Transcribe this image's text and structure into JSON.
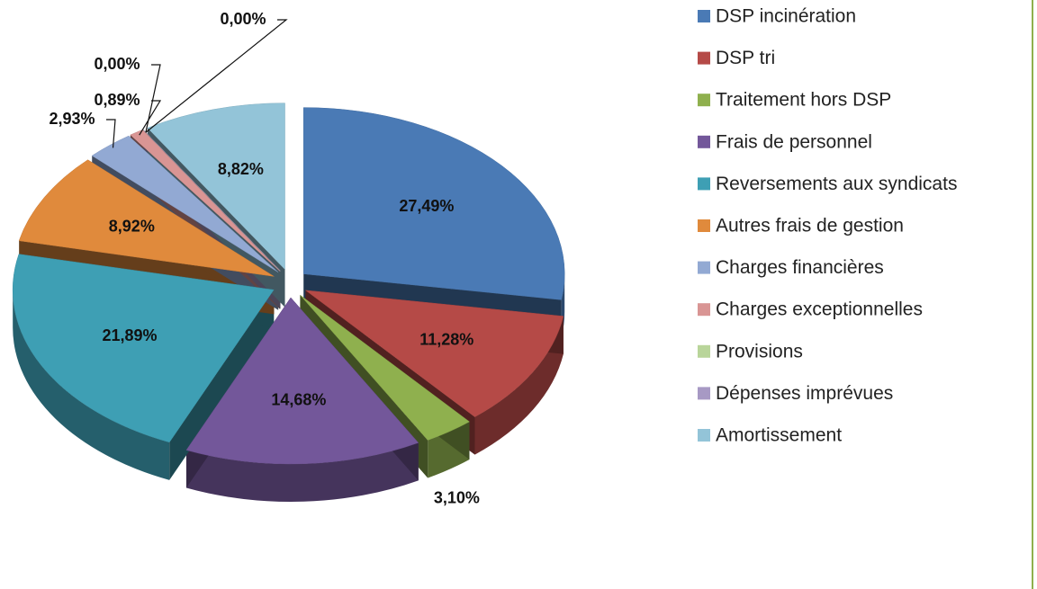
{
  "chart_data": {
    "type": "pie",
    "categories": [
      "DSP incinération",
      "DSP tri",
      "Traitement hors DSP",
      "Frais de personnel",
      "Reversements aux syndicats",
      "Autres frais de gestion",
      "Charges financières",
      "Charges exceptionnelles",
      "Provisions",
      "Dépenses imprévues",
      "Amortissement"
    ],
    "values": [
      27.49,
      11.28,
      3.1,
      14.68,
      21.89,
      8.92,
      2.93,
      0.89,
      0.0,
      0.0,
      8.82
    ],
    "value_labels": [
      "27,49%",
      "11,28%",
      "3,10%",
      "14,68%",
      "21,89%",
      "8,92%",
      "2,93%",
      "0,89%",
      "0,00%",
      "0,00%",
      "8,82%"
    ],
    "colors": [
      "#4a7ab5",
      "#b54a47",
      "#8fb04e",
      "#73579a",
      "#3e9fb4",
      "#e08a3c",
      "#92a9d3",
      "#d99594",
      "#b9d59a",
      "#a799c4",
      "#93c4d8"
    ],
    "legend": "right"
  }
}
